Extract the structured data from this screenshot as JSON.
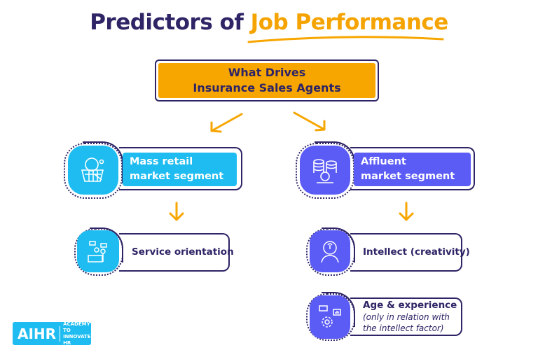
{
  "title": {
    "part1": "Predictors of",
    "part2": "Job Performance"
  },
  "top_box": {
    "line1": "What Drives",
    "line2": "Insurance Sales Agents"
  },
  "left": {
    "segment_line1": "Mass retail",
    "segment_line2": "market segment",
    "predictor": "Service orientation"
  },
  "right": {
    "segment_line1": "Affluent",
    "segment_line2": "market segment",
    "predictor1": "Intellect (creativity)",
    "predictor2": "Age & experience",
    "predictor2_note_line1": "(only in relation with",
    "predictor2_note_line2": "the intellect factor)"
  },
  "logo": {
    "mark": "AIHR",
    "line1": "ACADEMY TO",
    "line2": "INNOVATE HR"
  },
  "colors": {
    "navy": "#2e2466",
    "orange": "#f7a600",
    "cyan": "#1ebcf0",
    "purple": "#5b5bf5"
  }
}
